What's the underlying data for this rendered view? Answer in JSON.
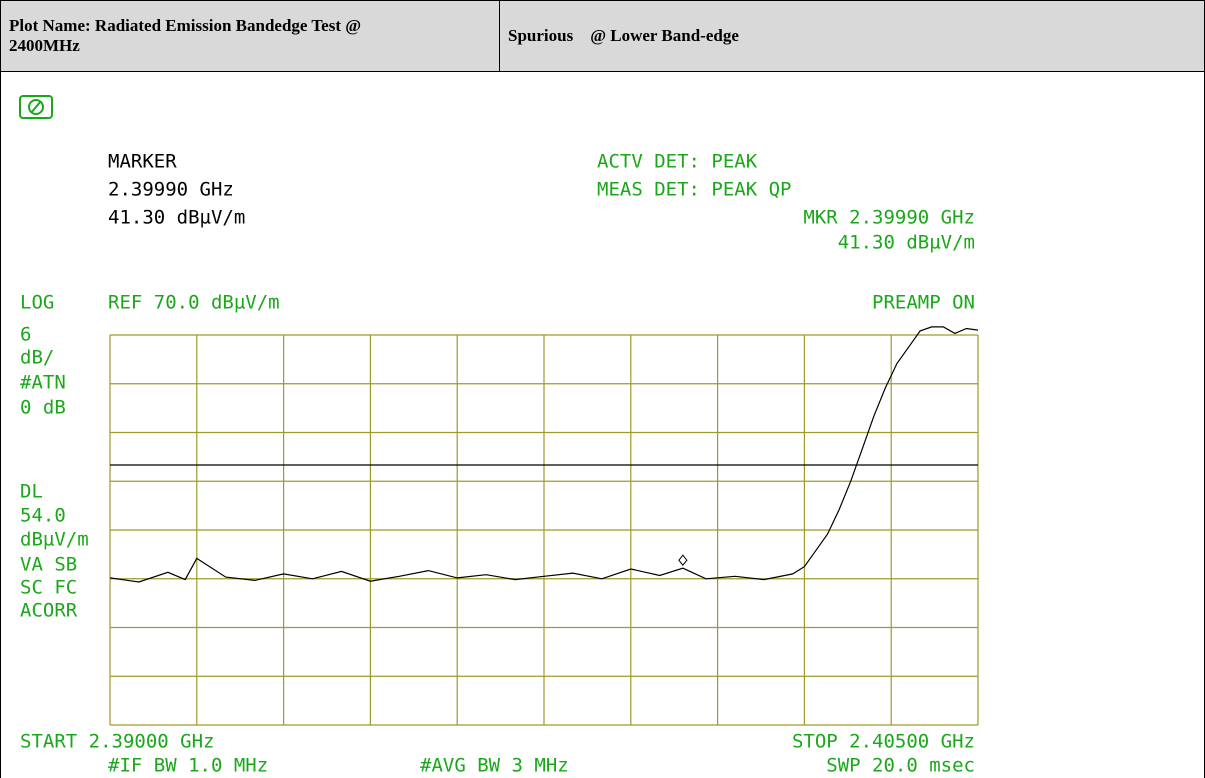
{
  "header": {
    "plot_name": "Plot Name: Radiated Emission Bandedge Test @ 2400MHz",
    "description": "Spurious    @ Lower Band-edge"
  },
  "chart_data": {
    "type": "line",
    "marker_block": [
      "MARKER",
      "2.39990 GHz",
      "41.30 dBµV/m"
    ],
    "detector_block": [
      "ACTV DET: PEAK",
      "MEAS DET: PEAK QP",
      "MKR 2.39990 GHz",
      "41.30 dBµV/m"
    ],
    "scale_line": [
      "LOG",
      "REF 70.0 dBµV/m",
      "PREAMP ON"
    ],
    "side_labels_top": [
      "6",
      "dB/",
      "#ATN",
      "0 dB"
    ],
    "side_labels_bottom": [
      "DL",
      "54.0",
      "dBµV/m",
      "VA SB",
      "SC FC",
      "ACORR"
    ],
    "footer": [
      "START 2.39000 GHz",
      "STOP 2.40500 GHz",
      "#IF BW 1.0 MHz",
      "#AVG BW 3 MHz",
      "SWP 20.0 msec"
    ],
    "display_line": {
      "value": 54,
      "label": "54.0"
    },
    "xlim": [
      2.39,
      2.405
    ],
    "ylim": [
      22,
      70
    ],
    "x": [
      2.39,
      2.3905,
      2.391,
      2.3913,
      2.3915,
      2.392,
      2.3925,
      2.393,
      2.3935,
      2.394,
      2.3945,
      2.395,
      2.3955,
      2.396,
      2.3965,
      2.397,
      2.3975,
      2.398,
      2.3985,
      2.399,
      2.3995,
      2.3999,
      2.4003,
      2.4008,
      2.4013,
      2.4018,
      2.402,
      2.4022,
      2.4024,
      2.4026,
      2.4028,
      2.403,
      2.4032,
      2.4034,
      2.4036,
      2.4038,
      2.404,
      2.4042,
      2.4044,
      2.4046,
      2.4048,
      2.405
    ],
    "series": [
      {
        "name": "trace",
        "color": "#000000",
        "values": [
          40.1,
          39.6,
          40.8,
          39.9,
          42.5,
          40.2,
          39.8,
          40.6,
          40.0,
          40.9,
          39.7,
          40.3,
          41.0,
          40.1,
          40.5,
          39.9,
          40.3,
          40.7,
          40.0,
          41.2,
          40.4,
          41.3,
          40.0,
          40.3,
          39.9,
          40.6,
          41.5,
          43.5,
          45.5,
          48.5,
          52,
          56,
          60,
          63.5,
          66.5,
          68.5,
          70.5,
          71,
          71,
          70.2,
          70.8,
          70.6
        ]
      }
    ],
    "marker_index": 21,
    "grid_color": "#a09a2a",
    "text_color": "#1aa81a"
  }
}
